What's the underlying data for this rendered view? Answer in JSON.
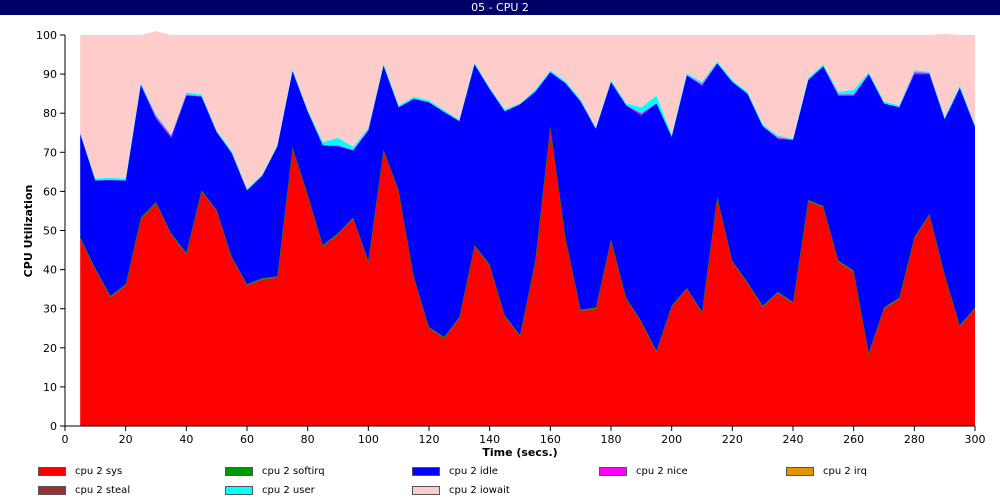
{
  "window": {
    "title": "05 - CPU 2"
  },
  "chart_data": {
    "type": "area",
    "stacked": true,
    "title": "05 - CPU 2",
    "xlabel": "Time (secs.)",
    "ylabel": "CPU Utilization",
    "xlim": [
      0,
      300
    ],
    "ylim": [
      0,
      100
    ],
    "xticks": [
      0,
      20,
      40,
      60,
      80,
      100,
      120,
      140,
      160,
      180,
      200,
      220,
      240,
      260,
      280,
      300
    ],
    "yticks": [
      0,
      10,
      20,
      30,
      40,
      50,
      60,
      70,
      80,
      90,
      100
    ],
    "grid": false,
    "legend_position": "bottom",
    "x": [
      5,
      10,
      15,
      20,
      25,
      30,
      35,
      40,
      45,
      50,
      55,
      60,
      65,
      70,
      75,
      80,
      85,
      90,
      95,
      100,
      105,
      110,
      115,
      120,
      125,
      130,
      135,
      140,
      145,
      150,
      155,
      160,
      165,
      170,
      175,
      180,
      185,
      190,
      195,
      200,
      205,
      210,
      215,
      220,
      225,
      230,
      235,
      240,
      245,
      250,
      255,
      260,
      265,
      270,
      275,
      280,
      285,
      290,
      295,
      300
    ],
    "series": [
      {
        "name": "cpu 2 sys",
        "color": "#ff0000",
        "values": [
          48,
          40,
          33,
          36,
          53,
          57,
          49,
          44,
          60,
          55,
          43,
          36,
          37.5,
          38,
          71,
          59,
          46,
          49,
          53,
          42,
          70.5,
          60,
          38,
          25,
          22.5,
          27.5,
          46,
          41,
          28,
          23,
          42,
          76.5,
          48,
          29.5,
          30,
          47.5,
          32.5,
          26.5,
          19,
          30.5,
          35,
          29,
          58.5,
          42,
          36.5,
          30.5,
          34,
          31.5,
          57.5,
          56,
          42,
          39.5,
          18.5,
          30,
          32.5,
          48,
          54,
          38.5,
          25.5,
          30
        ]
      },
      {
        "name": "cpu 2 softirq",
        "color": "#009900",
        "values": [
          0.3,
          0.3,
          0.3,
          0.3,
          0.3,
          0.3,
          0.3,
          0.3,
          0.3,
          0.3,
          0.3,
          0.3,
          0.3,
          0.3,
          0.3,
          0.3,
          0.3,
          0.3,
          0.3,
          0.3,
          0.3,
          0.3,
          0.3,
          0.3,
          0.3,
          0.3,
          0.3,
          0.3,
          0.3,
          0.3,
          0.3,
          0.3,
          0.3,
          0.3,
          0.3,
          0.3,
          0.3,
          0.3,
          0.3,
          0.3,
          0.3,
          0.3,
          0.3,
          0.3,
          0.3,
          0.3,
          0.3,
          0.3,
          0.3,
          0.3,
          0.3,
          0.3,
          0.3,
          0.3,
          0.3,
          0.3,
          0.3,
          0.3,
          0.3,
          0.3
        ]
      },
      {
        "name": "cpu 2 idle",
        "color": "#0000ff",
        "values": [
          26.5,
          22.5,
          29.6,
          26.5,
          34,
          21.4,
          24.4,
          40.2,
          24,
          19.9,
          26.5,
          24,
          26.2,
          33.2,
          19.5,
          21.2,
          25.5,
          22.2,
          17.2,
          33.2,
          21.4,
          21.2,
          45.4,
          57.5,
          57.5,
          50.2,
          46.2,
          44.9,
          52.2,
          59,
          43.2,
          13.7,
          39.4,
          53.2,
          45.7,
          40.2,
          49.2,
          52.7,
          63.2,
          43.2,
          54.4,
          57.7,
          34,
          45.7,
          48.2,
          45.9,
          39.2,
          41.4,
          30.7,
          35.7,
          42.2,
          44.7,
          71.2,
          52.2,
          48.7,
          41.7,
          35.7,
          39.7,
          60.7,
          46.2
        ]
      },
      {
        "name": "cpu 2 nice",
        "color": "#ff00ff",
        "values": [
          0,
          0,
          0.1,
          0,
          0,
          0.5,
          0.5,
          0.3,
          0,
          0,
          0,
          0,
          0,
          0,
          0,
          0,
          0,
          0.3,
          0,
          0.3,
          0,
          0,
          0,
          0,
          0,
          0,
          0,
          0,
          0,
          0,
          0,
          0,
          0,
          0,
          0,
          0,
          0,
          0.5,
          0,
          0,
          0,
          0.5,
          0,
          0,
          0,
          0,
          0.3,
          0,
          0,
          0,
          0.3,
          0.3,
          0,
          0,
          0,
          0.5,
          0.3,
          0,
          0,
          0
        ]
      },
      {
        "name": "cpu 2 irq",
        "color": "#e59400",
        "values": [
          0,
          0,
          0,
          0,
          0,
          0,
          0,
          0,
          0,
          0,
          0,
          0,
          0,
          0,
          0,
          0,
          0,
          0,
          0,
          0,
          0,
          0,
          0,
          0,
          0,
          0,
          0,
          0,
          0,
          0,
          0,
          0,
          0,
          0,
          0,
          0,
          0,
          0,
          0,
          0,
          0,
          0,
          0,
          0,
          0,
          0,
          0,
          0,
          0,
          0,
          0,
          0,
          0,
          0,
          0,
          0,
          0,
          0,
          0,
          0
        ]
      },
      {
        "name": "cpu 2 steal",
        "color": "#993333",
        "values": [
          0,
          0,
          0,
          0,
          0,
          0,
          0,
          0,
          0,
          0,
          0,
          0,
          0,
          0,
          0,
          0,
          0,
          0,
          0,
          0,
          0,
          0,
          0,
          0,
          0,
          0,
          0,
          0,
          0,
          0,
          0,
          0,
          0,
          0,
          0,
          0,
          0,
          0,
          0,
          0,
          0,
          0,
          0,
          0,
          0,
          0,
          0,
          0,
          0,
          0,
          0,
          0,
          0,
          0,
          0,
          0,
          0,
          0,
          0,
          0
        ]
      },
      {
        "name": "cpu 2 user",
        "color": "#00ffff",
        "values": [
          0.2,
          0.5,
          0.5,
          0.5,
          0.5,
          0.5,
          0.3,
          0.5,
          0.5,
          0.3,
          0.5,
          0.3,
          0.3,
          0.3,
          0.5,
          0.3,
          0.8,
          1.9,
          0.9,
          0.5,
          0.5,
          0.5,
          0.5,
          0.5,
          0.5,
          0.3,
          0.5,
          0.3,
          0.5,
          0.2,
          0.5,
          0.5,
          0.5,
          0.5,
          0.3,
          0.5,
          0.5,
          1.5,
          2,
          0.5,
          0.5,
          0.5,
          0.5,
          0.5,
          0.5,
          0.5,
          0.5,
          0.3,
          0.5,
          0.5,
          0.7,
          1.2,
          0.5,
          0.5,
          0.5,
          0.5,
          0.3,
          0.5,
          0.5,
          0.5
        ]
      },
      {
        "name": "cpu 2 iowait",
        "color": "#ffcccc",
        "values": [
          25,
          36.7,
          36.5,
          36.7,
          12.2,
          21.3,
          25.5,
          14.7,
          15.2,
          24.5,
          29.7,
          39.4,
          35.7,
          28.2,
          8.7,
          19.2,
          27.4,
          26.3,
          28.6,
          23.7,
          7.3,
          18,
          15.8,
          16.7,
          19.2,
          21.7,
          7,
          13.5,
          19,
          17.5,
          14,
          9,
          11.8,
          16.5,
          23.7,
          11.5,
          17.5,
          18.5,
          15.5,
          25.5,
          9.8,
          12,
          6.7,
          11.5,
          14.5,
          22.8,
          25.7,
          26.5,
          11,
          7.5,
          14.5,
          14,
          9.5,
          17,
          18,
          9,
          9.4,
          21.3,
          13,
          23
        ]
      }
    ]
  }
}
